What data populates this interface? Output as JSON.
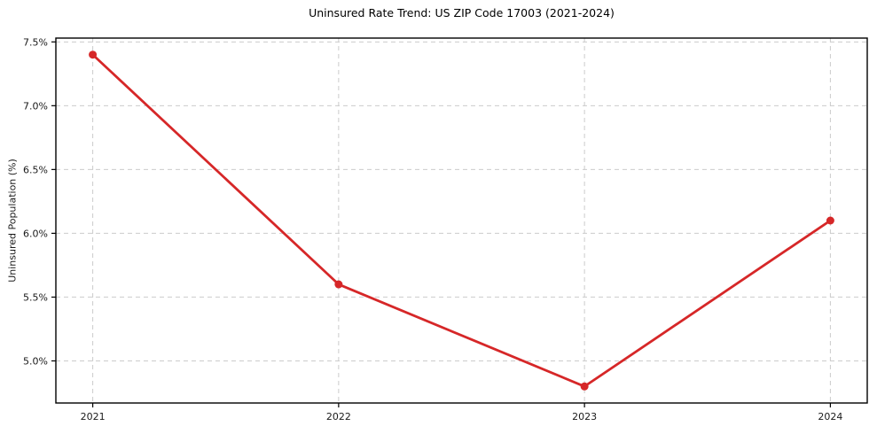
{
  "chart_data": {
    "type": "line",
    "title": "Uninsured Rate Trend: US ZIP Code 17003 (2021-2024)",
    "xlabel": "",
    "ylabel": "Uninsured Population (%)",
    "x": [
      2021,
      2022,
      2023,
      2024
    ],
    "x_tick_labels": [
      "2021",
      "2022",
      "2023",
      "2024"
    ],
    "values": [
      7.4,
      5.6,
      4.8,
      6.1
    ],
    "xlim": [
      2020.85,
      2024.15
    ],
    "ylim": [
      4.67,
      7.53
    ],
    "yticks": [
      7.5,
      7.0,
      6.5,
      6.0,
      5.5,
      5.0
    ],
    "ytick_labels": [
      "7.5%",
      "7.0%",
      "6.5%",
      "6.0%",
      "5.5%",
      "5.0%"
    ],
    "grid": true,
    "grid_style": "dashed",
    "legend_position": "none",
    "marker": "circle",
    "colors": {
      "line": "#d62728",
      "marker": "#d62728",
      "grid": "#cccccc",
      "spine": "#000000",
      "tick": "#000000",
      "text": "#1a1a1a",
      "background": "#ffffff"
    }
  }
}
